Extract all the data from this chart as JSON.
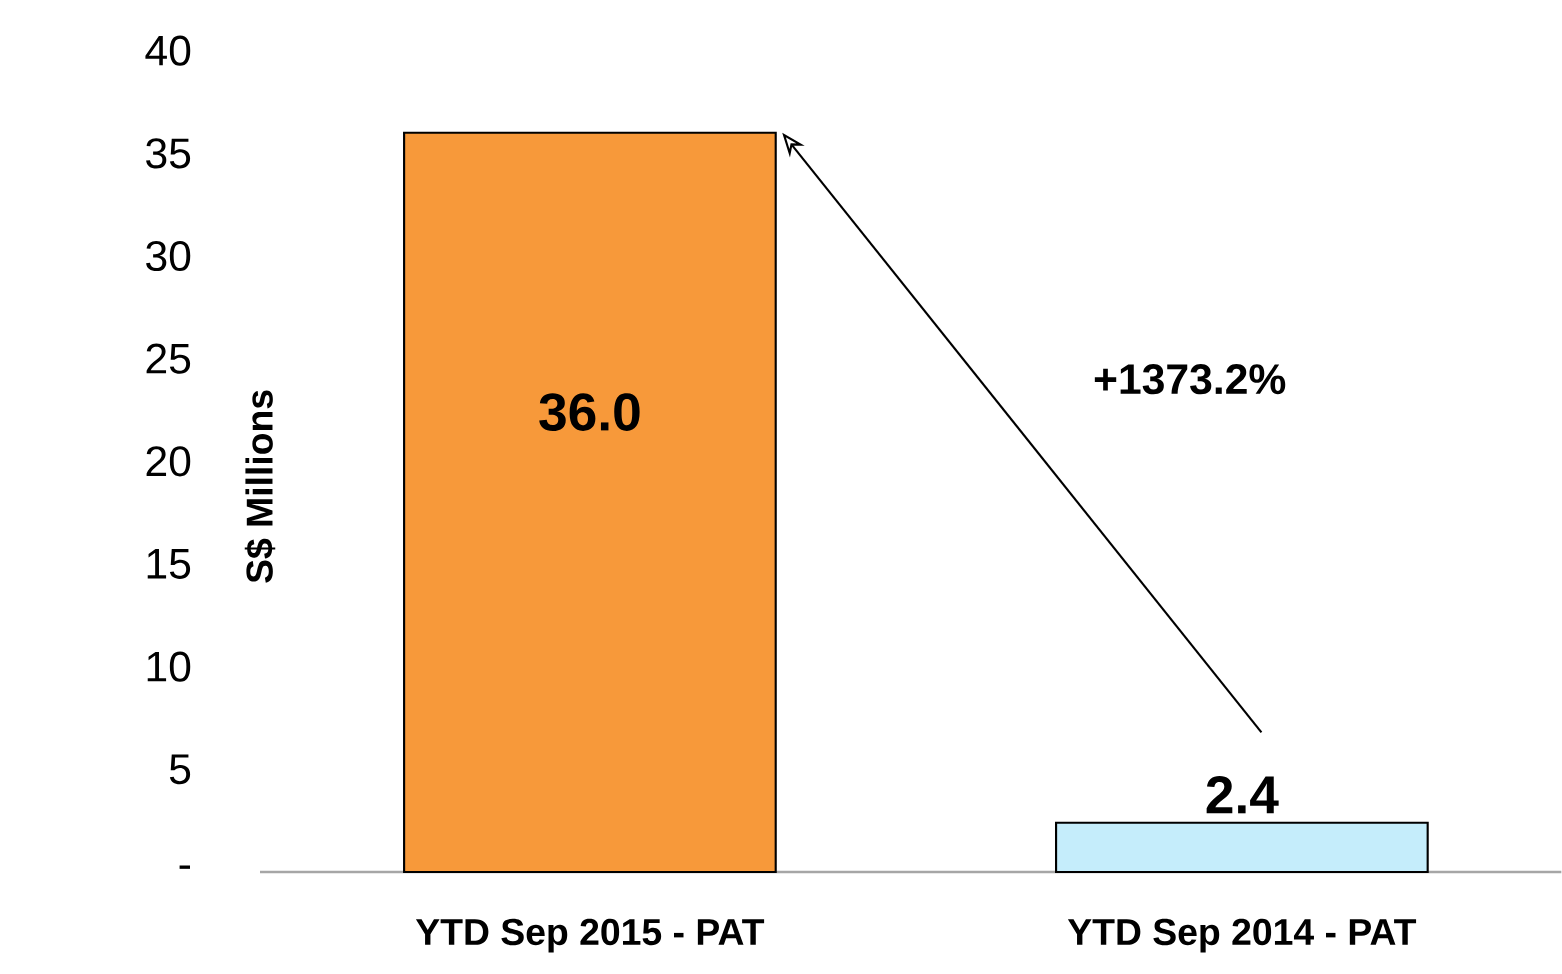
{
  "chart_data": {
    "type": "bar",
    "categories": [
      "YTD Sep 2015 - PAT",
      "YTD Sep 2014 - PAT"
    ],
    "values": [
      36.0,
      2.4
    ],
    "colors": [
      "#f7993a",
      "#c5edfb"
    ],
    "value_labels": [
      "36.0",
      "2.4"
    ],
    "ylabel": "S$ Millions",
    "ylim": [
      0,
      40
    ],
    "yticks": [
      {
        "value": 0,
        "label": "-"
      },
      5,
      10,
      15,
      20,
      25,
      30,
      35,
      40
    ],
    "annotations": [
      "+1373.2%"
    ],
    "grid": false
  }
}
